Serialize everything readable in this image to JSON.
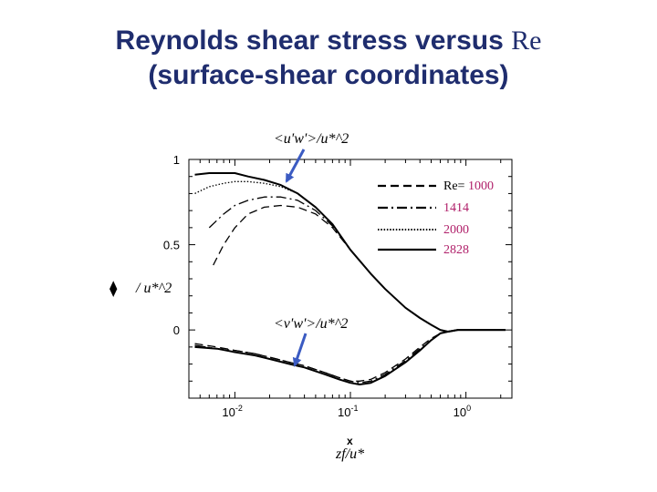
{
  "title": {
    "line1": "Reynolds shear stress versus",
    "line1_re": "Re",
    "line2": "(surface-shear coordinates)"
  },
  "annotations": {
    "uw_label": "<u'w'>/u*^2",
    "vw_label": "<v'w'>/u*^2",
    "diamond": "⧫",
    "left_label": "/ u*^2",
    "x_axis_letter": "x",
    "x_axis_label": "zf/u*"
  },
  "colors": {
    "arrow": "#3b5bc2",
    "legend_value": "#b0206a",
    "curves": "#000000",
    "title": "#1f2d6e"
  },
  "chart_data": {
    "type": "line",
    "x_scale": "log",
    "xlim": [
      0.004,
      2.5
    ],
    "ylim": [
      -0.4,
      1
    ],
    "x_ticks": [
      {
        "value": 0.01,
        "base": "10",
        "exp": "-2"
      },
      {
        "value": 0.1,
        "base": "10",
        "exp": "-1"
      },
      {
        "value": 1,
        "base": "10",
        "exp": "0"
      }
    ],
    "y_ticks": [
      {
        "value": 0,
        "label": "0"
      },
      {
        "value": 0.5,
        "label": "0.5"
      },
      {
        "value": 1,
        "label": "1"
      }
    ],
    "legend": {
      "prefix": "Re=",
      "placement": "top-right",
      "entries": [
        {
          "label": "1000",
          "dash": "dashed"
        },
        {
          "label": "1414",
          "dash": "dashdot"
        },
        {
          "label": "2000",
          "dash": "dotted"
        },
        {
          "label": "2828",
          "dash": "solid"
        }
      ]
    },
    "series": [
      {
        "quantity": "uw",
        "re": "1000",
        "dash": "dashed",
        "points": [
          [
            0.0065,
            0.38
          ],
          [
            0.008,
            0.5
          ],
          [
            0.01,
            0.6
          ],
          [
            0.013,
            0.68
          ],
          [
            0.018,
            0.72
          ],
          [
            0.025,
            0.73
          ],
          [
            0.035,
            0.72
          ],
          [
            0.05,
            0.68
          ],
          [
            0.07,
            0.6
          ],
          [
            0.1,
            0.47
          ],
          [
            0.15,
            0.33
          ],
          [
            0.2,
            0.24
          ],
          [
            0.3,
            0.13
          ],
          [
            0.4,
            0.07
          ],
          [
            0.5,
            0.03
          ],
          [
            0.6,
            0.0
          ],
          [
            0.7,
            -0.01
          ],
          [
            0.85,
            0.0
          ],
          [
            1.0,
            0.0
          ],
          [
            1.5,
            0.0
          ],
          [
            2.2,
            0.0
          ]
        ]
      },
      {
        "quantity": "uw",
        "re": "1414",
        "dash": "dashdot",
        "points": [
          [
            0.006,
            0.6
          ],
          [
            0.008,
            0.68
          ],
          [
            0.01,
            0.73
          ],
          [
            0.013,
            0.76
          ],
          [
            0.018,
            0.78
          ],
          [
            0.025,
            0.78
          ],
          [
            0.035,
            0.76
          ],
          [
            0.05,
            0.7
          ],
          [
            0.07,
            0.61
          ],
          [
            0.1,
            0.47
          ],
          [
            0.15,
            0.33
          ],
          [
            0.2,
            0.24
          ],
          [
            0.3,
            0.13
          ],
          [
            0.4,
            0.07
          ],
          [
            0.5,
            0.03
          ],
          [
            0.6,
            0.0
          ],
          [
            0.7,
            -0.01
          ],
          [
            0.85,
            0.0
          ],
          [
            1.0,
            0.0
          ],
          [
            1.5,
            0.0
          ],
          [
            2.2,
            0.0
          ]
        ]
      },
      {
        "quantity": "uw",
        "re": "2000",
        "dash": "dotted",
        "points": [
          [
            0.0045,
            0.8
          ],
          [
            0.006,
            0.84
          ],
          [
            0.008,
            0.86
          ],
          [
            0.01,
            0.87
          ],
          [
            0.013,
            0.87
          ],
          [
            0.018,
            0.86
          ],
          [
            0.025,
            0.84
          ],
          [
            0.035,
            0.8
          ],
          [
            0.05,
            0.72
          ],
          [
            0.07,
            0.62
          ],
          [
            0.1,
            0.47
          ],
          [
            0.15,
            0.33
          ],
          [
            0.2,
            0.24
          ],
          [
            0.3,
            0.13
          ],
          [
            0.4,
            0.07
          ],
          [
            0.5,
            0.03
          ],
          [
            0.6,
            0.0
          ],
          [
            0.7,
            -0.01
          ],
          [
            0.85,
            0.0
          ],
          [
            1.0,
            0.0
          ],
          [
            1.5,
            0.0
          ],
          [
            2.2,
            0.0
          ]
        ]
      },
      {
        "quantity": "uw",
        "re": "2828",
        "dash": "solid",
        "points": [
          [
            0.0045,
            0.91
          ],
          [
            0.006,
            0.92
          ],
          [
            0.008,
            0.92
          ],
          [
            0.01,
            0.92
          ],
          [
            0.013,
            0.9
          ],
          [
            0.018,
            0.88
          ],
          [
            0.025,
            0.85
          ],
          [
            0.035,
            0.8
          ],
          [
            0.05,
            0.72
          ],
          [
            0.07,
            0.62
          ],
          [
            0.1,
            0.47
          ],
          [
            0.15,
            0.33
          ],
          [
            0.2,
            0.24
          ],
          [
            0.3,
            0.13
          ],
          [
            0.4,
            0.07
          ],
          [
            0.5,
            0.03
          ],
          [
            0.6,
            0.0
          ],
          [
            0.7,
            -0.01
          ],
          [
            0.85,
            0.0
          ],
          [
            1.0,
            0.0
          ],
          [
            1.5,
            0.0
          ],
          [
            2.2,
            0.0
          ]
        ]
      },
      {
        "quantity": "vw",
        "re": "1000",
        "dash": "dashed",
        "points": [
          [
            0.0045,
            -0.08
          ],
          [
            0.007,
            -0.1
          ],
          [
            0.01,
            -0.12
          ],
          [
            0.015,
            -0.14
          ],
          [
            0.02,
            -0.16
          ],
          [
            0.03,
            -0.19
          ],
          [
            0.04,
            -0.21
          ],
          [
            0.06,
            -0.25
          ],
          [
            0.08,
            -0.28
          ],
          [
            0.1,
            -0.3
          ],
          [
            0.12,
            -0.3
          ],
          [
            0.15,
            -0.29
          ],
          [
            0.2,
            -0.25
          ],
          [
            0.3,
            -0.17
          ],
          [
            0.4,
            -0.1
          ],
          [
            0.5,
            -0.05
          ],
          [
            0.6,
            -0.02
          ],
          [
            0.7,
            -0.01
          ],
          [
            0.85,
            0.0
          ],
          [
            1.0,
            0.0
          ],
          [
            1.5,
            0.0
          ],
          [
            2.2,
            0.0
          ]
        ]
      },
      {
        "quantity": "vw",
        "re": "1414",
        "dash": "dashdot",
        "points": [
          [
            0.0045,
            -0.09
          ],
          [
            0.007,
            -0.11
          ],
          [
            0.01,
            -0.12
          ],
          [
            0.015,
            -0.14
          ],
          [
            0.02,
            -0.16
          ],
          [
            0.03,
            -0.19
          ],
          [
            0.04,
            -0.21
          ],
          [
            0.06,
            -0.25
          ],
          [
            0.08,
            -0.28
          ],
          [
            0.1,
            -0.3
          ],
          [
            0.12,
            -0.31
          ],
          [
            0.15,
            -0.3
          ],
          [
            0.2,
            -0.26
          ],
          [
            0.3,
            -0.18
          ],
          [
            0.4,
            -0.11
          ],
          [
            0.5,
            -0.06
          ],
          [
            0.6,
            -0.02
          ],
          [
            0.7,
            -0.01
          ],
          [
            0.85,
            0.0
          ],
          [
            1.0,
            0.0
          ],
          [
            1.5,
            0.0
          ],
          [
            2.2,
            0.0
          ]
        ]
      },
      {
        "quantity": "vw",
        "re": "2000",
        "dash": "dotted",
        "points": [
          [
            0.0045,
            -0.09
          ],
          [
            0.007,
            -0.11
          ],
          [
            0.01,
            -0.13
          ],
          [
            0.015,
            -0.15
          ],
          [
            0.02,
            -0.17
          ],
          [
            0.03,
            -0.2
          ],
          [
            0.04,
            -0.22
          ],
          [
            0.06,
            -0.26
          ],
          [
            0.08,
            -0.29
          ],
          [
            0.1,
            -0.31
          ],
          [
            0.12,
            -0.32
          ],
          [
            0.15,
            -0.31
          ],
          [
            0.2,
            -0.27
          ],
          [
            0.3,
            -0.19
          ],
          [
            0.4,
            -0.12
          ],
          [
            0.5,
            -0.06
          ],
          [
            0.6,
            -0.02
          ],
          [
            0.7,
            -0.01
          ],
          [
            0.85,
            0.0
          ],
          [
            1.0,
            0.0
          ],
          [
            1.5,
            0.0
          ],
          [
            2.2,
            0.0
          ]
        ]
      },
      {
        "quantity": "vw",
        "re": "2828",
        "dash": "solid",
        "points": [
          [
            0.0045,
            -0.1
          ],
          [
            0.007,
            -0.11
          ],
          [
            0.01,
            -0.13
          ],
          [
            0.015,
            -0.15
          ],
          [
            0.02,
            -0.17
          ],
          [
            0.03,
            -0.2
          ],
          [
            0.04,
            -0.22
          ],
          [
            0.06,
            -0.26
          ],
          [
            0.08,
            -0.29
          ],
          [
            0.1,
            -0.31
          ],
          [
            0.12,
            -0.32
          ],
          [
            0.15,
            -0.31
          ],
          [
            0.2,
            -0.27
          ],
          [
            0.3,
            -0.19
          ],
          [
            0.4,
            -0.12
          ],
          [
            0.5,
            -0.06
          ],
          [
            0.6,
            -0.02
          ],
          [
            0.7,
            -0.01
          ],
          [
            0.85,
            0.0
          ],
          [
            1.0,
            0.0
          ],
          [
            1.5,
            0.0
          ],
          [
            2.2,
            0.0
          ]
        ]
      }
    ]
  }
}
